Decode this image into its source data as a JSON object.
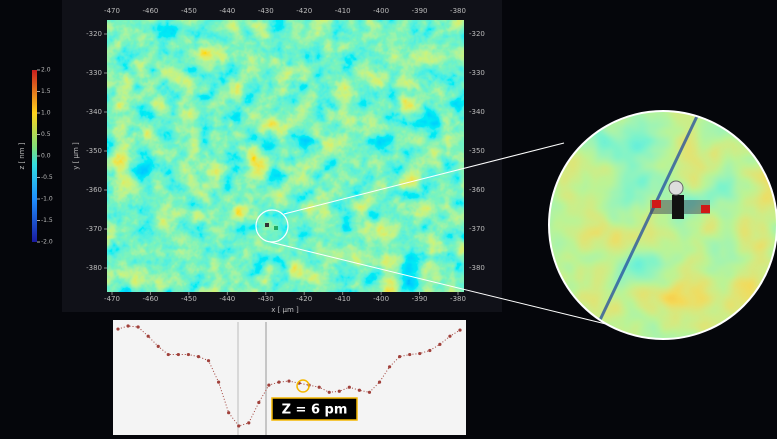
{
  "chart_data": [
    {
      "type": "heatmap",
      "xlabel": "x [ μm ]",
      "ylabel": "y [ μm ]",
      "xlim": [
        -470,
        -380
      ],
      "xticks": [
        -470,
        -460,
        -450,
        -440,
        -430,
        -420,
        -410,
        -400,
        -390,
        -380
      ],
      "ylim": [
        -320,
        -380
      ],
      "yticks": [
        -320,
        -330,
        -340,
        -350,
        -360,
        -370,
        -380
      ],
      "colorbar": {
        "label": "z [ nm ]",
        "lim": [
          -2,
          2
        ],
        "ticks": [
          {
            "value": 2,
            "label": "2.0"
          },
          1.5,
          {
            "value": 1,
            "label": "1.0"
          },
          0.5,
          {
            "value": 0,
            "label": "0.0"
          },
          -0.5,
          {
            "value": -1,
            "label": "-1.0"
          },
          -1.5,
          {
            "value": -2,
            "label": "-2.0"
          }
        ]
      }
    },
    {
      "type": "line",
      "color": "#a0403a",
      "annotation": "Z = 6 pm",
      "ylim": [
        0,
        1
      ],
      "values": [
        0.97,
        1.0,
        0.99,
        0.9,
        0.8,
        0.72,
        0.72,
        0.72,
        0.7,
        0.66,
        0.45,
        0.15,
        0.02,
        0.05,
        0.25,
        0.42,
        0.45,
        0.46,
        0.44,
        0.42,
        0.4,
        0.35,
        0.36,
        0.4,
        0.37,
        0.35,
        0.45,
        0.6,
        0.7,
        0.72,
        0.73,
        0.76,
        0.82,
        0.9,
        0.96
      ]
    }
  ]
}
